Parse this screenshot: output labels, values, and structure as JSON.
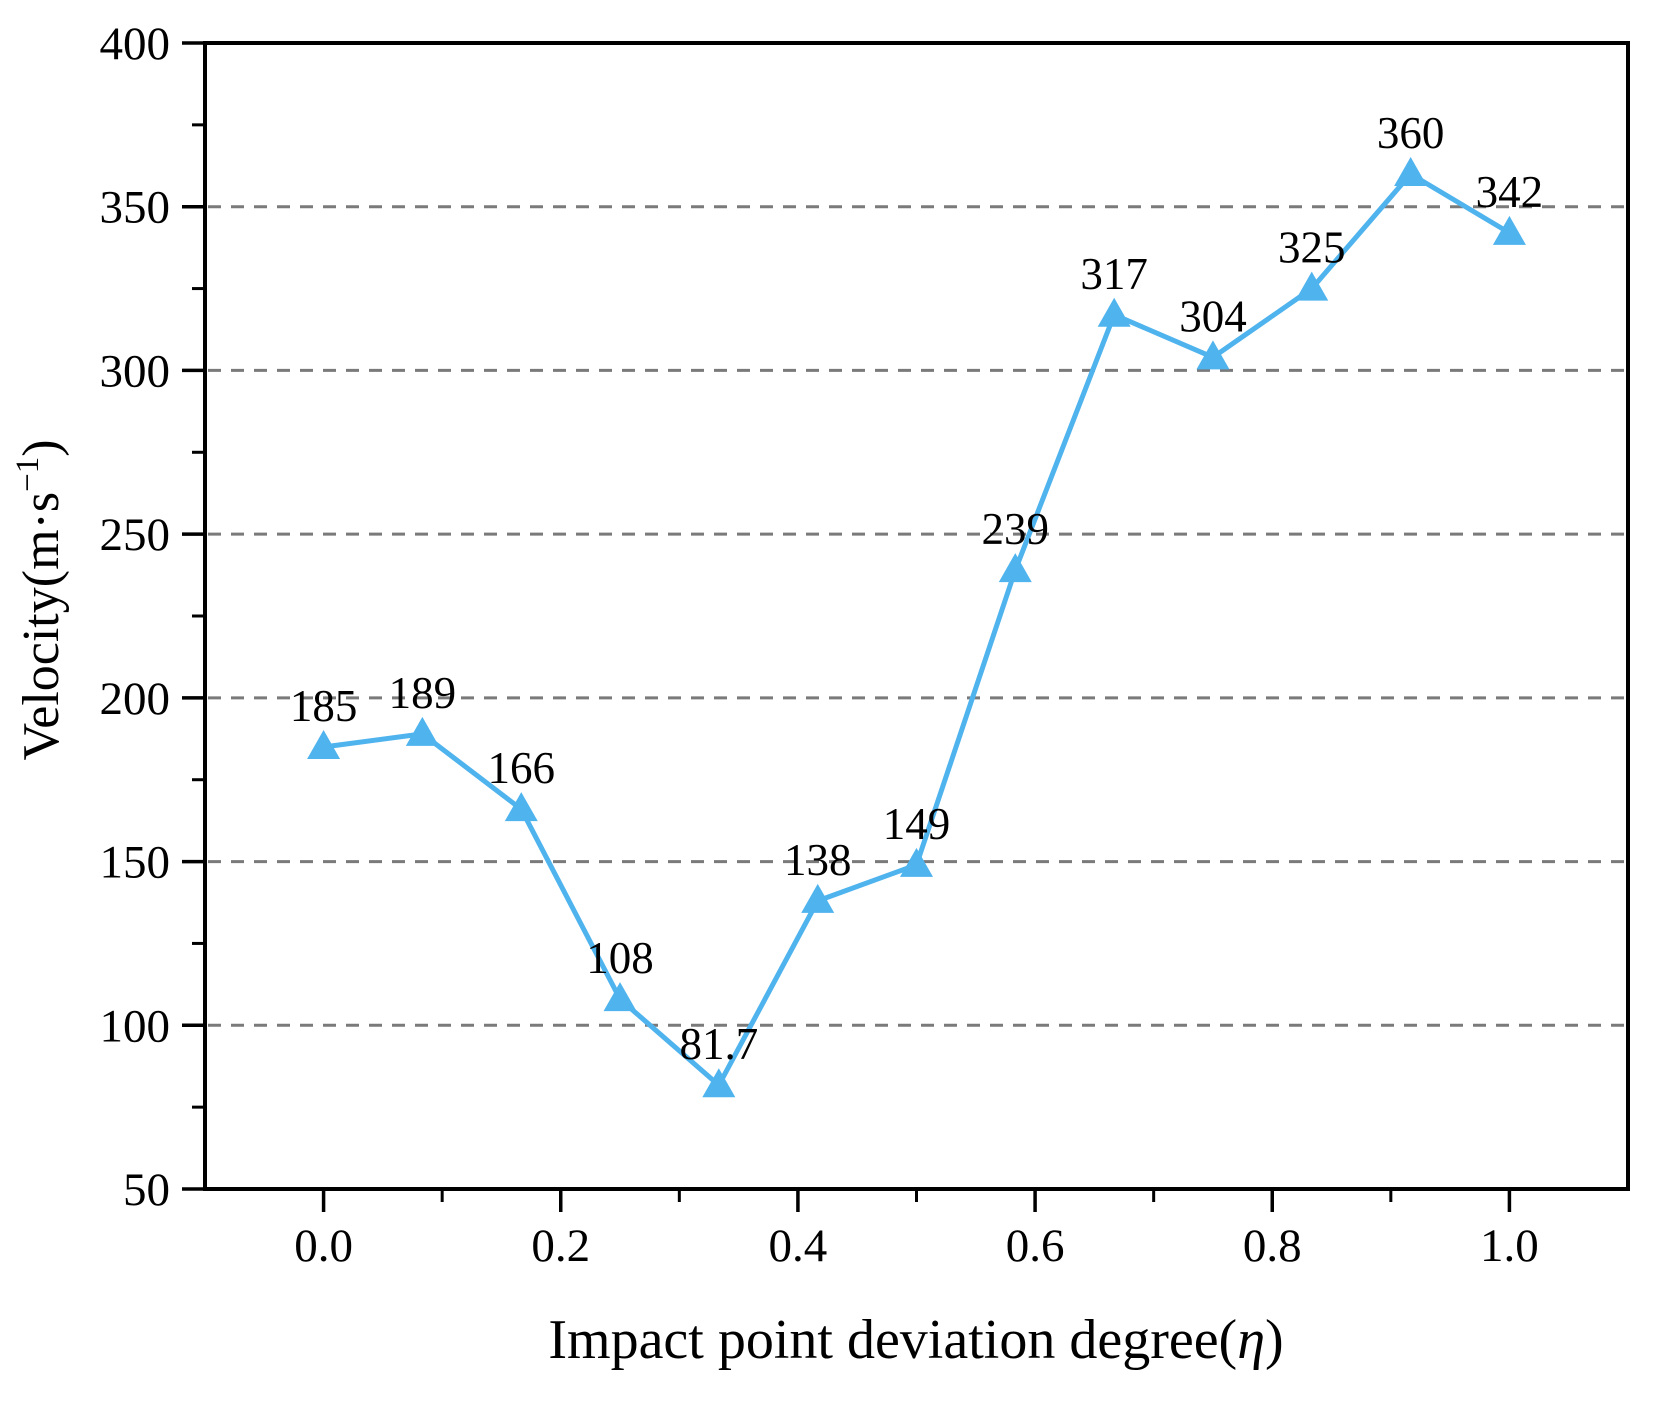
{
  "chart_data": {
    "type": "line",
    "title": "",
    "xlabel": "Impact point deviation degree(η)",
    "xlabel_parts": {
      "prefix": "Impact point deviation degree(",
      "symbol": "η",
      "suffix": ")"
    },
    "ylabel": "Velocity(m·s−1)",
    "ylabel_parts": {
      "prefix": "Velocity(m·s",
      "superscript": "−1",
      "suffix": ")"
    },
    "x": [
      0,
      0.0833,
      0.1667,
      0.25,
      0.3333,
      0.4167,
      0.5,
      0.5833,
      0.6667,
      0.75,
      0.8333,
      0.9167,
      1.0
    ],
    "values": [
      185,
      189,
      166,
      108,
      81.7,
      138,
      149,
      239,
      317,
      304,
      325,
      360,
      342
    ],
    "point_labels": [
      "185",
      "189",
      "166",
      "108",
      "81.7",
      "138",
      "149",
      "239",
      "317",
      "304",
      "325",
      "360",
      "342"
    ],
    "xlim": [
      -0.1,
      1.1
    ],
    "ylim": [
      50,
      400
    ],
    "x_ticks": [
      0.0,
      0.2,
      0.4,
      0.6,
      0.8,
      1.0
    ],
    "x_tick_labels": [
      "0.0",
      "0.2",
      "0.4",
      "0.6",
      "0.8",
      "1.0"
    ],
    "x_minor_ticks": [
      0.1,
      0.3,
      0.5,
      0.7,
      0.9
    ],
    "y_ticks": [
      50,
      100,
      150,
      200,
      250,
      300,
      350,
      400
    ],
    "y_tick_labels": [
      "50",
      "100",
      "150",
      "200",
      "250",
      "300",
      "350",
      "400"
    ],
    "y_minor_ticks": [
      75,
      125,
      175,
      225,
      275,
      325,
      375
    ],
    "gridline_values": [
      100,
      150,
      200,
      250,
      300,
      350
    ],
    "grid": "horizontal-dashed",
    "legend": "none",
    "line_color": "#4fb3ee",
    "marker": "triangle-up",
    "grid_color": "#7a7a7a",
    "axis_color": "#000000",
    "label_color": "#000000"
  }
}
